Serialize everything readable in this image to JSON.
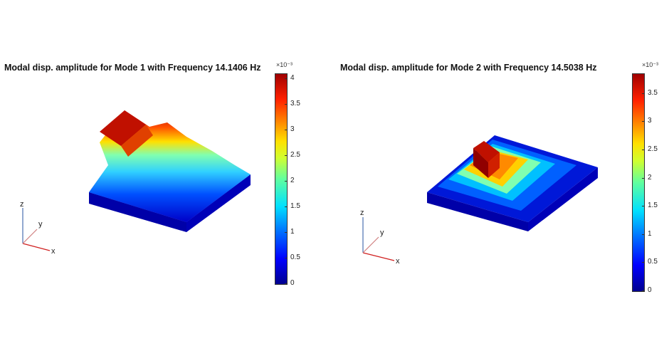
{
  "plots": [
    {
      "title": "Modal disp. amplitude for Mode 1 with Frequency 14.1406 Hz",
      "exponent": "×10⁻³",
      "colorbar_ticks": [
        "0",
        "0.5",
        "1",
        "1.5",
        "2",
        "2.5",
        "3",
        "3.5",
        "4"
      ],
      "colorbar_max": 4.1,
      "axes_labels": {
        "x": "x",
        "y": "y",
        "z": "z"
      }
    },
    {
      "title": "Modal disp. amplitude for Mode 2 with Frequency 14.5038 Hz",
      "exponent": "×10⁻³",
      "colorbar_ticks": [
        "0",
        "0.5",
        "1",
        "1.5",
        "2",
        "2.5",
        "3",
        "3.5"
      ],
      "colorbar_max": 3.85,
      "axes_labels": {
        "x": "x",
        "y": "y",
        "z": "z"
      }
    }
  ],
  "colors": {
    "low": "#0000c8",
    "high": "#a00000"
  }
}
